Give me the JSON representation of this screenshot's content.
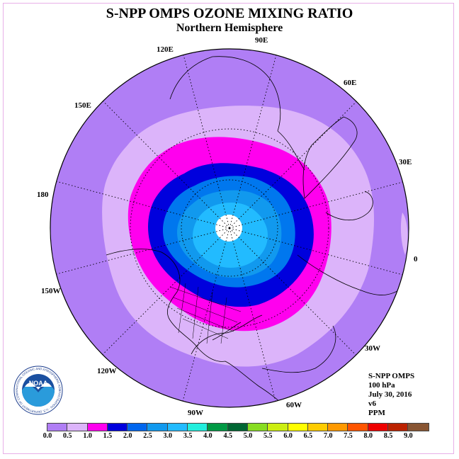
{
  "header": {
    "title": "S-NPP OMPS OZONE MIXING RATIO",
    "subtitle": "Northern Hemisphere"
  },
  "map": {
    "projection": "polar stereographic (north pole)",
    "longitude_labels": [
      "90E",
      "60E",
      "30E",
      "0",
      "30W",
      "60W",
      "90W",
      "120W",
      "150W",
      "180",
      "150E",
      "120E"
    ],
    "contour_colors": [
      "#b07ef5",
      "#dcb4fa",
      "#ff00ee",
      "#0000dd",
      "#0077ee",
      "#1199ee",
      "#22bbff",
      "#ffffff"
    ]
  },
  "info": {
    "instrument": "S-NPP OMPS",
    "level": "100 hPa",
    "date": "July 30, 2016",
    "version": "v6",
    "units": "PPM"
  },
  "logo": {
    "name": "NOAA",
    "ring_text": "NATIONAL OCEANIC AND ATMOSPHERIC ADMINISTRATION · U.S. DEPARTMENT OF COMMERCE"
  },
  "colorbar": {
    "colors": [
      "#b07ef5",
      "#dcb4fa",
      "#ff00ee",
      "#0000dd",
      "#0066ee",
      "#1199ee",
      "#22bbff",
      "#22eedd",
      "#009944",
      "#006633",
      "#88dd22",
      "#ccee11",
      "#ffff00",
      "#ffcc00",
      "#ff9900",
      "#ff5500",
      "#ee0000",
      "#bb2200",
      "#885533"
    ],
    "tick_labels": [
      "0.0",
      "0.5",
      "1.0",
      "1.5",
      "2.0",
      "2.5",
      "3.0",
      "3.5",
      "4.0",
      "4.5",
      "5.0",
      "5.5",
      "6.0",
      "6.5",
      "7.0",
      "7.5",
      "8.0",
      "8.5",
      "9.0"
    ]
  }
}
